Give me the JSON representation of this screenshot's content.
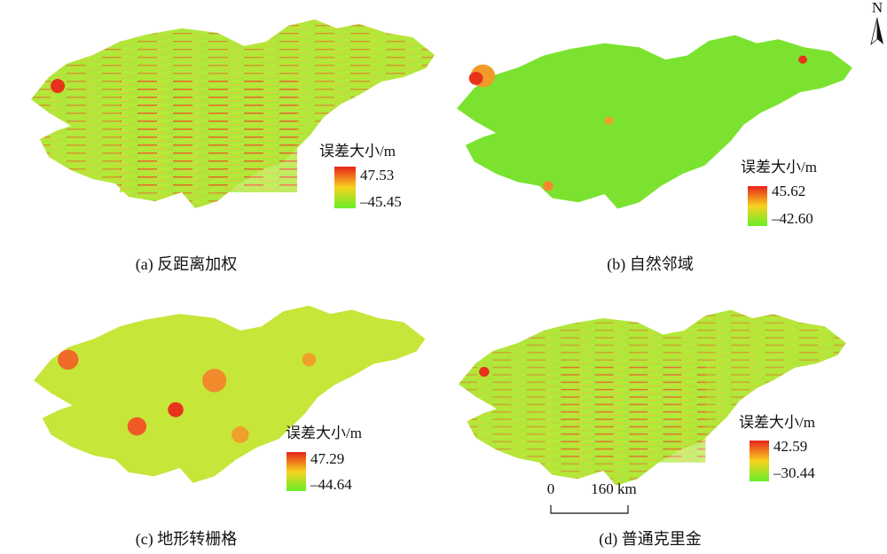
{
  "north": "N",
  "panels": [
    {
      "caption": "(a) 反距离加权",
      "legend": {
        "title": "误差大小/m",
        "max": "47.53",
        "min": "–45.45"
      }
    },
    {
      "caption": "(b) 自然邻域",
      "legend": {
        "title": "误差大小/m",
        "max": "45.62",
        "min": "–42.60"
      }
    },
    {
      "caption": "(c) 地形转栅格",
      "legend": {
        "title": "误差大小/m",
        "max": "47.29",
        "min": "–44.64"
      }
    },
    {
      "caption": "(d) 普通克里金",
      "legend": {
        "title": "误差大小/m",
        "max": "42.59",
        "min": "–30.44"
      }
    }
  ],
  "scale_bar": {
    "start": "0",
    "end": "160 km"
  }
}
